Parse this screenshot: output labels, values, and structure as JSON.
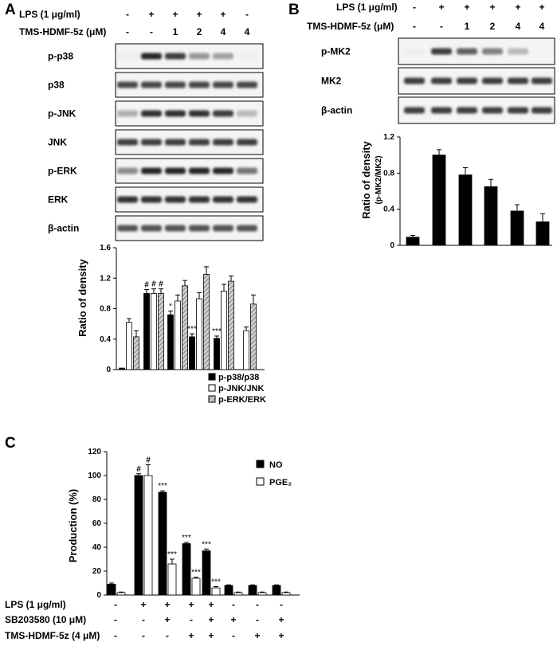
{
  "panels": {
    "A": {
      "letter": "A",
      "conditions": [
        {
          "label": "LPS (1 μg/ml)",
          "values": [
            "-",
            "+",
            "+",
            "+",
            "+",
            "-"
          ]
        },
        {
          "label": "TMS-HDMF-5z (μM)",
          "values": [
            "-",
            "-",
            "1",
            "2",
            "4",
            "4"
          ]
        }
      ],
      "blots": [
        {
          "label": "p-p38",
          "intensity": [
            0.08,
            0.95,
            0.85,
            0.45,
            0.4,
            0.06
          ]
        },
        {
          "label": "p38",
          "intensity": [
            0.8,
            0.8,
            0.8,
            0.8,
            0.8,
            0.8
          ]
        },
        {
          "label": "p-JNK",
          "intensity": [
            0.35,
            0.9,
            0.9,
            0.9,
            0.85,
            0.3
          ]
        },
        {
          "label": "JNK",
          "intensity": [
            0.85,
            0.85,
            0.85,
            0.85,
            0.85,
            0.85
          ]
        },
        {
          "label": "p-ERK",
          "intensity": [
            0.5,
            0.95,
            0.95,
            0.95,
            0.95,
            0.6
          ]
        },
        {
          "label": "ERK",
          "intensity": [
            0.9,
            0.9,
            0.9,
            0.9,
            0.9,
            0.9
          ]
        },
        {
          "label": "β-actin",
          "intensity": [
            0.75,
            0.75,
            0.75,
            0.75,
            0.75,
            0.75
          ]
        }
      ]
    },
    "B": {
      "letter": "B",
      "conditions": [
        {
          "label": "LPS (1 μg/ml)",
          "values": [
            "-",
            "+",
            "+",
            "+",
            "+",
            "+"
          ]
        },
        {
          "label": "TMS-HDMF-5z (μM)",
          "values": [
            "-",
            "-",
            "1",
            "2",
            "4",
            "4"
          ]
        }
      ],
      "blots": [
        {
          "label": "p-MK2",
          "intensity": [
            0.08,
            0.85,
            0.7,
            0.55,
            0.3,
            0.05
          ]
        },
        {
          "label": "MK2",
          "intensity": [
            0.85,
            0.85,
            0.85,
            0.85,
            0.85,
            0.85
          ]
        },
        {
          "label": "β-actin",
          "intensity": [
            0.85,
            0.85,
            0.85,
            0.85,
            0.85,
            0.85
          ]
        }
      ]
    },
    "C": {
      "letter": "C",
      "conditions": [
        {
          "label": "LPS (1 μg/ml)",
          "values": [
            "-",
            "+",
            "+",
            "+",
            "+",
            "-",
            "-",
            "-"
          ]
        },
        {
          "label": "SB203580 (10 μM)",
          "values": [
            "-",
            "-",
            "+",
            "-",
            "+",
            "+",
            "-",
            "+"
          ]
        },
        {
          "label": "TMS-HDMF-5z (4 μM)",
          "values": [
            "-",
            "-",
            "-",
            "+",
            "+",
            "-",
            "+",
            "+"
          ]
        }
      ]
    }
  },
  "chart_data": [
    {
      "panel": "A",
      "type": "bar",
      "ylabel": "Ratio of density",
      "ylim": [
        0,
        1.6
      ],
      "yticks": [
        "0",
        "0.4",
        "0.8",
        "1.2",
        "1.6"
      ],
      "groups": 6,
      "series": [
        {
          "name": "p-p38/p38",
          "values": [
            0.02,
            1.0,
            0.72,
            0.43,
            0.41,
            0.0
          ],
          "errors": [
            0.0,
            0.05,
            0.05,
            0.04,
            0.03,
            0.0
          ],
          "marks": [
            "",
            "#",
            "*",
            "***",
            "***",
            ""
          ],
          "fill": "#000000"
        },
        {
          "name": "p-JNK/JNK",
          "values": [
            0.62,
            1.0,
            0.9,
            0.93,
            1.03,
            0.51
          ],
          "errors": [
            0.05,
            0.06,
            0.08,
            0.08,
            0.09,
            0.05
          ],
          "marks": [
            "",
            "#",
            "",
            "",
            "",
            ""
          ],
          "fill": "#ffffff"
        },
        {
          "name": "p-ERK/ERK",
          "values": [
            0.43,
            1.0,
            1.1,
            1.25,
            1.16,
            0.86
          ],
          "errors": [
            0.08,
            0.06,
            0.07,
            0.1,
            0.07,
            0.12
          ],
          "marks": [
            "",
            "#",
            "",
            "",
            "",
            ""
          ],
          "fill": "hatch"
        }
      ]
    },
    {
      "panel": "B",
      "type": "bar",
      "ylabel": "Ratio of density",
      "ylabel_sub": "(p-MK2/MK2)",
      "ylim": [
        0,
        1.2
      ],
      "yticks": [
        "0",
        "0.4",
        "0.8",
        "1.2"
      ],
      "series": [
        {
          "name": "p-MK2/MK2",
          "values": [
            0.09,
            1.0,
            0.78,
            0.65,
            0.38,
            0.26
          ],
          "errors": [
            0.02,
            0.06,
            0.08,
            0.08,
            0.07,
            0.09
          ],
          "fill": "#000000"
        }
      ]
    },
    {
      "panel": "C",
      "type": "bar",
      "ylabel": "Production (%)",
      "ylim": [
        0,
        120
      ],
      "yticks": [
        "0",
        "20",
        "40",
        "60",
        "80",
        "100",
        "120"
      ],
      "series": [
        {
          "name": "NO",
          "values": [
            9,
            100,
            86,
            43,
            37,
            8,
            8,
            8
          ],
          "errors": [
            1,
            1.5,
            1.2,
            1,
            1.5,
            0.5,
            0.5,
            0.5
          ],
          "marks": [
            "",
            "#",
            "***",
            "***",
            "***",
            "",
            "",
            ""
          ],
          "fill": "#000000"
        },
        {
          "name": "PGE₂",
          "values": [
            2,
            100,
            26,
            14,
            6,
            2,
            2,
            2
          ],
          "errors": [
            0.5,
            9,
            4,
            1,
            1,
            0.5,
            0.5,
            0.5
          ],
          "marks": [
            "",
            "#",
            "***",
            "***",
            "***",
            "",
            "",
            ""
          ],
          "fill": "#ffffff"
        }
      ]
    }
  ]
}
